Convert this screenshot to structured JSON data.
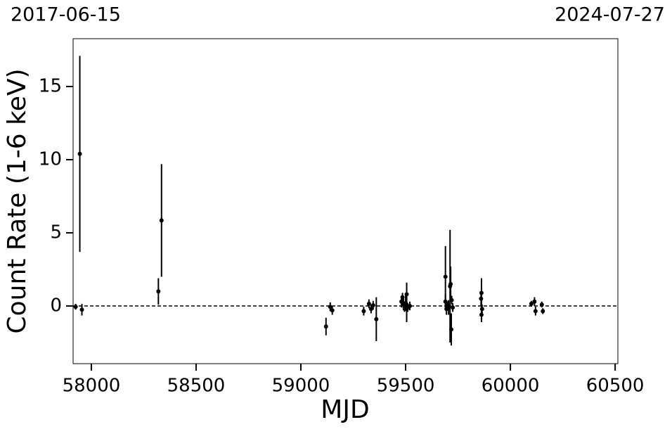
{
  "chart_data": {
    "type": "errorbar",
    "start_label": "2017-06-15",
    "end_label": "2024-07-27",
    "xlabel": "MJD",
    "ylabel": "Count Rate (1-6 keV)",
    "color": "#000000",
    "hline": 0,
    "xlim": [
      57913,
      60513
    ],
    "ylim": [
      -3.94,
      18.27
    ],
    "xticks": [
      58000,
      58500,
      59000,
      59500,
      60000,
      60500
    ],
    "yticks": [
      0,
      5,
      10,
      15
    ],
    "x": [
      57925,
      57945,
      57955,
      58320,
      58335,
      59120,
      59140,
      59150,
      59300,
      59325,
      59335,
      59345,
      59360,
      59480,
      59485,
      59490,
      59495,
      59500,
      59505,
      59505,
      59510,
      59520,
      59690,
      59690,
      59695,
      59700,
      59705,
      59712,
      59715,
      59718,
      59720,
      59725,
      59860,
      59862,
      59865,
      59862,
      60100,
      60115,
      60120,
      60150,
      60155
    ],
    "values": [
      -0.05,
      10.4,
      -0.25,
      1.0,
      5.85,
      -1.4,
      -0.05,
      -0.3,
      -0.35,
      0.15,
      -0.2,
      0.05,
      -0.9,
      0.3,
      0.6,
      0.1,
      -0.1,
      0.2,
      0.8,
      -0.2,
      -0.1,
      0.0,
      2.0,
      0.3,
      -0.2,
      0.0,
      -0.1,
      1.35,
      1.5,
      -1.6,
      0.4,
      -0.1,
      0.5,
      0.9,
      -0.2,
      -0.6,
      0.15,
      0.3,
      -0.35,
      0.1,
      -0.35
    ],
    "errors": [
      0.2,
      6.7,
      0.4,
      0.9,
      3.85,
      0.6,
      0.3,
      0.3,
      0.3,
      0.3,
      0.3,
      0.3,
      1.5,
      0.4,
      0.3,
      0.4,
      0.3,
      0.5,
      0.8,
      0.9,
      0.3,
      0.3,
      2.1,
      0.5,
      0.4,
      0.3,
      0.5,
      3.85,
      1.2,
      1.1,
      0.3,
      0.3,
      0.5,
      1.0,
      0.3,
      0.5,
      0.2,
      0.3,
      0.3,
      0.2,
      0.2
    ]
  }
}
